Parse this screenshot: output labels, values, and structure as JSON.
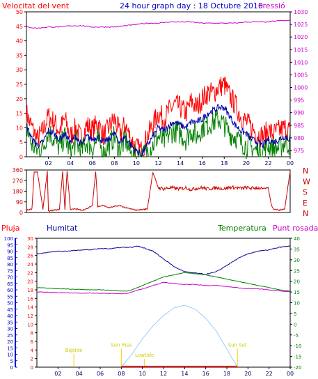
{
  "title": "24 hour graph day : 18 Octubre 2016",
  "colors": {
    "wind": "#ff0000",
    "wind_avg": "#0000aa",
    "wind_dir": "#cc0000",
    "pressure": "#cc00cc",
    "rain": "#ff0000",
    "humidity": "#000099",
    "temperature": "#008000",
    "dewpoint": "#cc00cc",
    "solar": "#99ccff",
    "astro": "#ffcc00",
    "axis": "#000000",
    "humidity_axis": "#0000cc"
  },
  "chart_data": [
    {
      "type": "line",
      "id": "wind_pressure",
      "left_label": "Velocitat del vent",
      "right_label": "Pressió",
      "x_ticks": [
        "02",
        "04",
        "06",
        "08",
        "10",
        "12",
        "14",
        "16",
        "18",
        "20",
        "22",
        "00"
      ],
      "y_left_ticks": [
        0,
        5,
        10,
        15,
        20,
        25,
        30,
        35,
        40,
        45,
        50
      ],
      "y_left_range": [
        0,
        50
      ],
      "y_right_ticks": [
        975,
        980,
        985,
        990,
        995,
        1000,
        1005,
        1010,
        1015,
        1020,
        1025,
        1030
      ],
      "y_right_range": [
        972.5,
        1030
      ],
      "series": [
        {
          "key": "gust",
          "color_key": "wind",
          "x": [
            0,
            0.5,
            1,
            1.5,
            2,
            2.5,
            3,
            3.5,
            4,
            4.5,
            5,
            5.5,
            6,
            6.5,
            7,
            7.5,
            8,
            8.5,
            9,
            9.5,
            10,
            10.5,
            11,
            11.5,
            12,
            12.5,
            13,
            13.5,
            14,
            14.5,
            15,
            15.5,
            16,
            16.5,
            17,
            17.5,
            18,
            18.5,
            19,
            19.5,
            20,
            20.5,
            21,
            21.5,
            22,
            22.5,
            23,
            23.5,
            24
          ],
          "y": [
            15,
            10,
            6,
            9,
            14,
            12,
            9,
            13,
            7,
            10,
            6,
            11,
            9,
            12,
            7,
            10,
            13,
            8,
            11,
            6,
            3,
            2,
            7,
            11,
            15,
            13,
            16,
            18,
            17,
            15,
            19,
            17,
            20,
            22,
            22,
            24,
            25,
            21,
            18,
            14,
            12,
            10,
            8,
            7,
            9,
            8,
            9,
            10,
            9
          ]
        },
        {
          "key": "avg",
          "color_key": "wind_avg",
          "x": [
            0,
            0.5,
            1,
            1.5,
            2,
            2.5,
            3,
            3.5,
            4,
            4.5,
            5,
            5.5,
            6,
            6.5,
            7,
            7.5,
            8,
            8.5,
            9,
            9.5,
            10,
            10.5,
            11,
            11.5,
            12,
            12.5,
            13,
            13.5,
            14,
            14.5,
            15,
            15.5,
            16,
            16.5,
            17,
            17.5,
            18,
            18.5,
            19,
            19.5,
            20,
            20.5,
            21,
            21.5,
            22,
            22.5,
            23,
            23.5,
            24
          ],
          "y": [
            11,
            6,
            4,
            5,
            9,
            8,
            6,
            8,
            5,
            7,
            4,
            7,
            6,
            7,
            5,
            6,
            8,
            5,
            7,
            4,
            2,
            1,
            4,
            7,
            10,
            9,
            11,
            12,
            11,
            10,
            12,
            12,
            13,
            15,
            16,
            17,
            17,
            14,
            11,
            9,
            8,
            6,
            5,
            4,
            6,
            5,
            6,
            7,
            6
          ]
        },
        {
          "key": "min",
          "color_key": "temperature",
          "x": [
            0,
            0.5,
            1,
            1.5,
            2,
            2.5,
            3,
            3.5,
            4,
            4.5,
            5,
            5.5,
            6,
            6.5,
            7,
            7.5,
            8,
            8.5,
            9,
            9.5,
            10,
            10.5,
            11,
            11.5,
            12,
            12.5,
            13,
            13.5,
            14,
            14.5,
            15,
            15.5,
            16,
            16.5,
            17,
            17.5,
            18,
            18.5,
            19,
            19.5,
            20,
            20.5,
            21,
            21.5,
            22,
            22.5,
            23,
            23.5,
            24
          ],
          "y": [
            10,
            4,
            2,
            3,
            9,
            6,
            3,
            7,
            1,
            5,
            2,
            5,
            3,
            6,
            1,
            4,
            7,
            2,
            6,
            1,
            0,
            0,
            2,
            4,
            7,
            5,
            8,
            9,
            8,
            6,
            9,
            7,
            10,
            11,
            12,
            13,
            11,
            8,
            7,
            5,
            4,
            3,
            2,
            2,
            4,
            3,
            3,
            5,
            4
          ]
        },
        {
          "key": "pressure",
          "color_key": "pressure",
          "axis": "right",
          "x": [
            0,
            1,
            2,
            3,
            4,
            5,
            6,
            7,
            8,
            9,
            10,
            11,
            12,
            13,
            14,
            15,
            16,
            17,
            18,
            19,
            20,
            21,
            22,
            23,
            24
          ],
          "y": [
            1024,
            1023.5,
            1024,
            1024,
            1024.5,
            1024.5,
            1024,
            1024,
            1024,
            1024.5,
            1025,
            1025.5,
            1025.5,
            1026,
            1026,
            1026,
            1025.5,
            1025.5,
            1025.5,
            1025.5,
            1026,
            1026,
            1026,
            1026.5,
            1026.5
          ]
        }
      ]
    },
    {
      "type": "scatter",
      "id": "wind_direction",
      "y_ticks": [
        0,
        90,
        180,
        270,
        360
      ],
      "y_range": [
        0,
        360
      ],
      "compass_labels": [
        "N",
        "W",
        "S",
        "E",
        "N"
      ],
      "x": [
        0,
        0.5,
        0.7,
        1,
        1.5,
        1.9,
        2,
        2.5,
        3,
        3.3,
        3.5,
        3.7,
        4,
        4.5,
        5,
        5.5,
        6,
        6.3,
        6.5,
        7,
        7.5,
        8,
        8.5,
        9,
        9.5,
        10,
        10.5,
        11,
        11.5,
        12,
        12.5,
        13,
        13.5,
        14,
        14.5,
        15,
        15.5,
        16,
        16.5,
        17,
        17.5,
        18,
        18.5,
        19,
        19.5,
        20,
        20.5,
        21,
        21.5,
        22,
        22.3,
        22.5,
        23,
        23.5,
        24
      ],
      "y": [
        20,
        30,
        345,
        340,
        30,
        350,
        10,
        20,
        25,
        350,
        20,
        355,
        25,
        30,
        20,
        30,
        60,
        350,
        50,
        60,
        40,
        50,
        60,
        40,
        30,
        20,
        25,
        30,
        340,
        210,
        200,
        210,
        205,
        200,
        210,
        195,
        205,
        210,
        200,
        205,
        210,
        200,
        215,
        210,
        205,
        210,
        205,
        210,
        200,
        210,
        60,
        30,
        20,
        30,
        350
      ]
    },
    {
      "type": "line",
      "id": "humidity_temperature",
      "rain_label": "Pluja",
      "humidity_label": "Humitat",
      "temperature_label": "Temperatura",
      "dewpoint_label": "Punt rosada",
      "rain_ticks": [
        0,
        2,
        4,
        6,
        8,
        10,
        12,
        14,
        16,
        18,
        20,
        22,
        24,
        26,
        28,
        30
      ],
      "rain_range": [
        0,
        30
      ],
      "humidity_ticks": [
        0,
        5,
        10,
        15,
        20,
        25,
        30,
        35,
        40,
        45,
        50,
        55,
        60,
        65,
        70,
        75,
        80,
        85,
        90,
        95,
        100
      ],
      "humidity_range": [
        0,
        100
      ],
      "temp_ticks": [
        -20,
        -15,
        -10,
        -5,
        0,
        5,
        10,
        15,
        20,
        25,
        30,
        35,
        40
      ],
      "temp_range": [
        -20,
        40
      ],
      "annotations": [
        {
          "label": "Bigtide",
          "x": 3.5,
          "y_frac": 0.12
        },
        {
          "label": "Sun Rise",
          "x": 8.0,
          "y_frac": 0.16
        },
        {
          "label": "Lowtide",
          "x": 10.2,
          "y_frac": 0.08
        },
        {
          "label": "Sun Set",
          "x": 19.0,
          "y_frac": 0.16
        }
      ],
      "series": [
        {
          "key": "humidity",
          "color_key": "humidity",
          "axis": "humidity",
          "x": [
            0,
            1,
            2,
            3,
            4,
            5,
            6,
            7,
            8,
            9,
            9.5,
            10,
            11,
            12,
            13,
            14,
            15,
            16,
            16.5,
            17,
            18,
            19,
            20,
            21,
            22,
            23,
            24
          ],
          "y": [
            88,
            89,
            90,
            90,
            91,
            91,
            92,
            92,
            93,
            93,
            94,
            93,
            90,
            84,
            78,
            74,
            73,
            72,
            73,
            74,
            79,
            84,
            88,
            90,
            91,
            93,
            94
          ]
        },
        {
          "key": "temperature",
          "color_key": "temperature",
          "axis": "temp",
          "x": [
            0,
            1,
            2,
            3,
            4,
            5,
            6,
            7,
            8,
            8.5,
            9,
            10,
            11,
            12,
            13,
            14,
            15,
            16,
            17,
            18,
            19,
            20,
            21,
            22,
            23,
            24
          ],
          "y": [
            17,
            16.8,
            16.5,
            16.4,
            16.2,
            16,
            16,
            15.8,
            15.5,
            15.4,
            16,
            18,
            20,
            22,
            23,
            24,
            23.5,
            23,
            22,
            21,
            20,
            19,
            18,
            17,
            16,
            15.5
          ]
        },
        {
          "key": "dewpoint",
          "color_key": "dewpoint",
          "axis": "temp",
          "x": [
            0,
            1,
            2,
            3,
            4,
            5,
            6,
            7,
            8,
            8.5,
            9,
            10,
            11,
            12,
            13,
            14,
            15,
            16,
            17,
            18,
            19,
            20,
            21,
            22,
            23,
            24
          ],
          "y": [
            15,
            14.8,
            14.7,
            14.6,
            14.5,
            14.5,
            14.4,
            14.3,
            14.3,
            14.2,
            15,
            16.5,
            18,
            19.5,
            19,
            18.5,
            18.5,
            18,
            18,
            17.5,
            17,
            16.5,
            16.5,
            16,
            15.5,
            15
          ]
        },
        {
          "key": "solar",
          "color_key": "solar",
          "axis": "humidity",
          "x": [
            8,
            9,
            10,
            11,
            12,
            13,
            14,
            15,
            16,
            17,
            18,
            19
          ],
          "y": [
            0,
            10,
            22,
            32,
            40,
            46,
            48,
            45,
            38,
            28,
            14,
            0
          ]
        },
        {
          "key": "rain",
          "color_key": "rain",
          "axis": "rain",
          "x": [
            8,
            19
          ],
          "y": [
            0,
            0
          ]
        }
      ]
    }
  ]
}
